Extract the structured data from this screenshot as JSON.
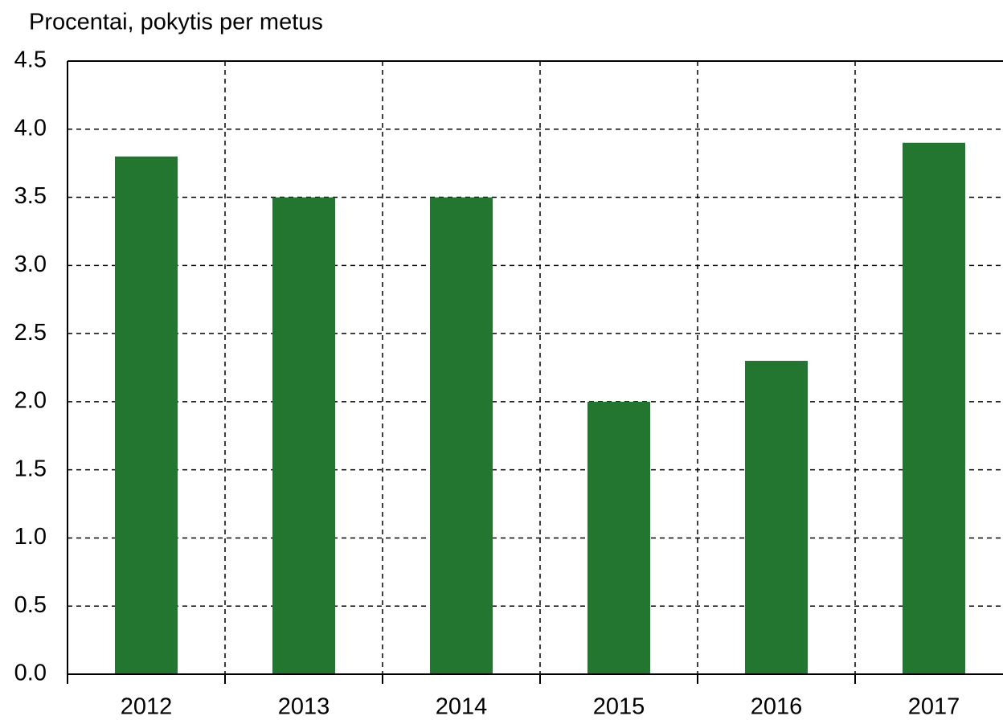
{
  "chart_data": {
    "type": "bar",
    "title": "Procentai, pokytis per metus",
    "categories": [
      "2012",
      "2013",
      "2014",
      "2015",
      "2016",
      "2017"
    ],
    "values": [
      3.8,
      3.5,
      3.5,
      2.0,
      2.3,
      3.9
    ],
    "color": "#23762f",
    "ylim": [
      0,
      4.5
    ],
    "yticks": [
      {
        "value": 0,
        "label": "0.0"
      },
      0.5,
      {
        "value": 1,
        "label": "1.0"
      },
      1.5,
      {
        "value": 2,
        "label": "2.0"
      },
      2.5,
      {
        "value": 3,
        "label": "3.0"
      },
      3.5,
      {
        "value": 4,
        "label": "4.0"
      },
      4.5
    ],
    "grid": true
  }
}
